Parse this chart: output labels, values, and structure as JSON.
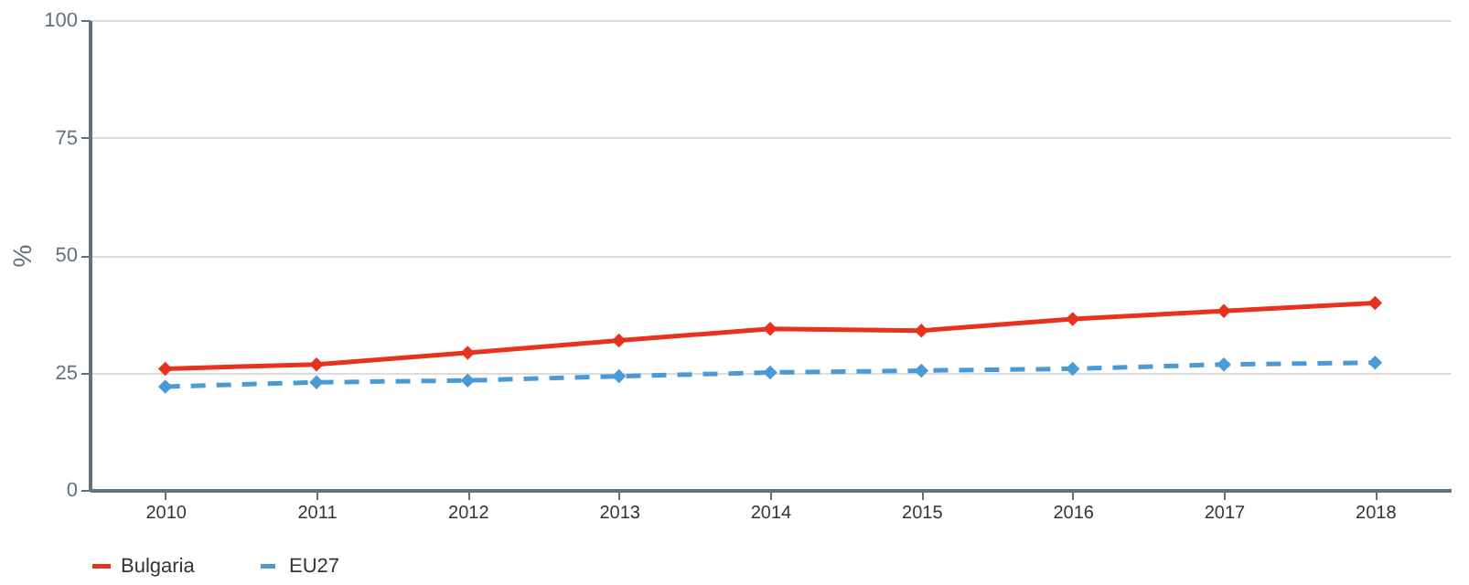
{
  "chart_data": {
    "type": "line",
    "ylabel": "%",
    "categories": [
      "2010",
      "2011",
      "2012",
      "2013",
      "2014",
      "2015",
      "2016",
      "2017",
      "2018"
    ],
    "series": [
      {
        "name": "Bulgaria",
        "color": "#e8321e",
        "line_style": "solid",
        "values": [
          25.8,
          26.7,
          29.2,
          31.8,
          34.3,
          33.9,
          36.4,
          38.1,
          39.8
        ]
      },
      {
        "name": "EU27",
        "color": "#4a9ad6",
        "line_style": "dashed",
        "values": [
          22.0,
          22.9,
          23.3,
          24.2,
          25.0,
          25.4,
          25.8,
          26.7,
          27.1
        ]
      }
    ],
    "ylim": [
      0,
      100
    ],
    "yticks": [
      0,
      25,
      50,
      75,
      100
    ],
    "grid": "y",
    "legend": "bottom",
    "marker": "diamond"
  }
}
